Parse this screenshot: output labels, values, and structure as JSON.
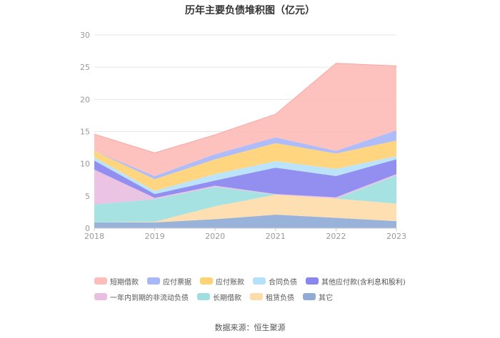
{
  "chart_data": {
    "type": "area",
    "stacked": true,
    "title": "历年主要负债堆积图（亿元）",
    "xlabel": "",
    "ylabel": "",
    "x": [
      "2018",
      "2019",
      "2020",
      "2021",
      "2022",
      "2023"
    ],
    "ylim": [
      0,
      30
    ],
    "yticks": [
      0,
      5,
      10,
      15,
      20,
      25,
      30
    ],
    "grid": true,
    "legend_position": "bottom",
    "series": [
      {
        "name": "其它",
        "color": "#8fabd6",
        "values": [
          0.9,
          0.9,
          1.4,
          2.1,
          1.6,
          1.1
        ]
      },
      {
        "name": "租赁负债",
        "color": "#fddcaa",
        "values": [
          0.0,
          0.1,
          2.0,
          3.1,
          3.0,
          2.7
        ]
      },
      {
        "name": "长期借款",
        "color": "#9fe0df",
        "values": [
          2.8,
          3.5,
          3.0,
          0.0,
          0.0,
          4.4
        ]
      },
      {
        "name": "一年内到期的非流动负债",
        "color": "#e8bfdf",
        "values": [
          5.4,
          0.2,
          0.2,
          0.1,
          0.2,
          0.2
        ]
      },
      {
        "name": "其他应付款(含利息和股利)",
        "color": "#8a86ef",
        "values": [
          1.4,
          0.6,
          0.8,
          4.1,
          3.3,
          2.3
        ]
      },
      {
        "name": "合同负债",
        "color": "#b5e2fb",
        "values": [
          0.5,
          0.5,
          1.0,
          1.0,
          1.1,
          0.5
        ]
      },
      {
        "name": "应付账款",
        "color": "#ffd374",
        "values": [
          1.0,
          1.8,
          2.3,
          2.8,
          2.4,
          2.4
        ]
      },
      {
        "name": "应付票据",
        "color": "#a7b7f8",
        "values": [
          0.0,
          0.5,
          0.8,
          0.9,
          0.4,
          1.6
        ]
      },
      {
        "name": "短期借款",
        "color": "#fdbdb9",
        "values": [
          2.6,
          3.6,
          3.0,
          3.6,
          13.6,
          10.0
        ]
      }
    ],
    "legend_order": [
      "短期借款",
      "应付票据",
      "应付账款",
      "合同负债",
      "其他应付款(含利息和股利)",
      "一年内到期的非流动负债",
      "长期借款",
      "租赁负债",
      "其它"
    ]
  },
  "source": "数据来源：恒生聚源"
}
